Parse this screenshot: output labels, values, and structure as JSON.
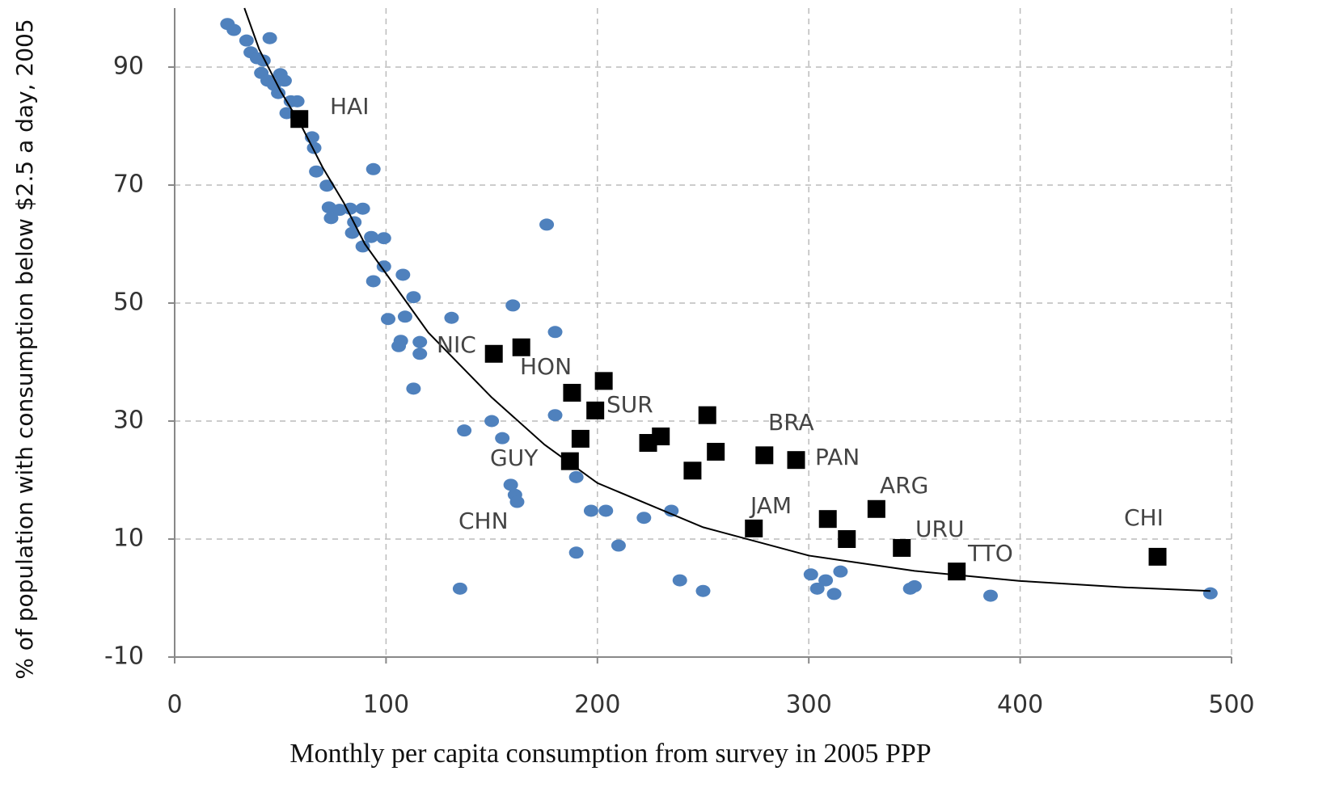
{
  "chart_data": {
    "type": "scatter",
    "x_label": "Monthly per capita consumption from survey in 2005 PPP",
    "y_label": "% of population with consumption below $2.5 a day, 2005",
    "xlim": [
      0,
      500
    ],
    "xticks": [
      0,
      100,
      200,
      300,
      400,
      500
    ],
    "ylim": [
      -10,
      100
    ],
    "yticks": [
      -10,
      10,
      30,
      50,
      70,
      90
    ],
    "grid": true,
    "series": [
      {
        "color": "#4f81bd",
        "marker": "ellipse",
        "x": [
          25,
          28,
          34,
          45,
          36,
          39,
          42,
          41,
          44,
          47,
          50,
          52,
          49,
          55,
          53,
          58,
          65,
          66,
          67,
          72,
          94,
          73,
          78,
          83,
          89,
          85,
          74,
          84,
          89,
          93,
          99,
          176,
          99,
          108,
          94,
          113,
          131,
          160,
          101,
          109,
          180,
          107,
          116,
          106,
          116,
          113,
          180,
          150,
          137,
          155,
          190,
          159,
          161,
          162,
          197,
          204,
          222,
          235,
          190,
          210,
          135,
          239,
          250,
          301,
          308,
          304,
          312,
          315,
          348,
          350,
          386,
          490
        ],
        "values": [
          97.3,
          96.3,
          94.5,
          94.9,
          92.5,
          91.5,
          91.1,
          89,
          87.7,
          87,
          88.8,
          87.7,
          85.6,
          84.2,
          82.2,
          84.2,
          78.1,
          76.3,
          72.3,
          69.9,
          72.7,
          66.2,
          65.8,
          66,
          66,
          63.7,
          64.4,
          61.9,
          59.6,
          61.2,
          61,
          63.3,
          56.2,
          54.8,
          53.7,
          51,
          47.5,
          49.6,
          47.3,
          47.7,
          45.1,
          43.6,
          43.4,
          42.7,
          41.4,
          35.5,
          31,
          30,
          28.4,
          27.1,
          20.5,
          19.2,
          17.5,
          16.3,
          14.8,
          14.8,
          13.6,
          14.8,
          7.7,
          8.9,
          1.6,
          3,
          1.2,
          4,
          3,
          1.6,
          0.7,
          4.5,
          1.6,
          2,
          0.4,
          0.8
        ]
      },
      {
        "color": "#000000",
        "marker": "square",
        "x": [
          59,
          151,
          164,
          188,
          203,
          199,
          192,
          187,
          224,
          230,
          252,
          256,
          245,
          279,
          294,
          274,
          309,
          318,
          332,
          344,
          370,
          465
        ],
        "values": [
          81.2,
          41.4,
          42.5,
          34.8,
          36.8,
          31.8,
          27,
          23.2,
          26.3,
          27.4,
          31,
          24.8,
          21.6,
          24.2,
          23.4,
          11.8,
          13.4,
          10,
          15.1,
          8.5,
          4.5,
          7
        ]
      },
      {
        "color": "#000000",
        "marker": "line",
        "x": [
          33,
          40,
          50,
          60,
          70,
          80,
          90,
          100,
          120,
          150,
          175,
          200,
          250,
          300,
          350,
          400,
          450,
          490
        ],
        "values": [
          100,
          93,
          86,
          80,
          73,
          67,
          60,
          55,
          45,
          34,
          26,
          19.5,
          12,
          7.2,
          4.6,
          2.9,
          1.8,
          1.2
        ]
      }
    ],
    "annotations": [
      "HAI",
      "NIC",
      "HON",
      "SUR",
      "GUY",
      "CHN",
      "BRA",
      "PAN",
      "JAM",
      "ARG",
      "URU",
      "TTO",
      "CHI"
    ]
  }
}
